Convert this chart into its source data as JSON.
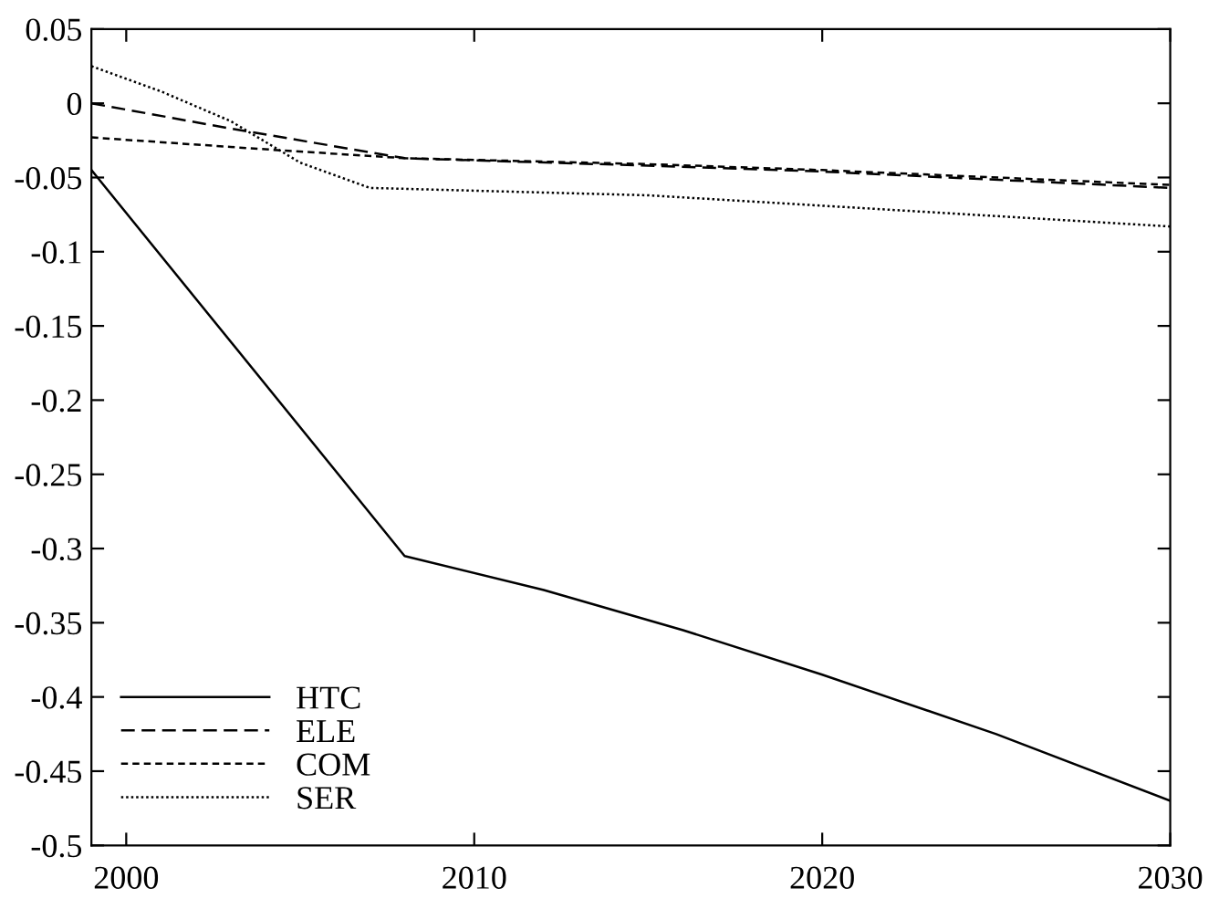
{
  "chart_data": {
    "type": "line",
    "xlim": [
      1999,
      2030
    ],
    "xticks": [
      2000,
      2010,
      2020,
      2030
    ],
    "ylim": [
      -0.5,
      0.05
    ],
    "yticks": [
      {
        "value": -0.5,
        "label": "-0.5"
      },
      {
        "value": -0.45,
        "label": "-0.45"
      },
      {
        "value": -0.4,
        "label": "-0.4"
      },
      {
        "value": -0.35,
        "label": "-0.35"
      },
      {
        "value": -0.3,
        "label": "-0.3"
      },
      {
        "value": -0.25,
        "label": "-0.25"
      },
      {
        "value": -0.2,
        "label": "-0.2"
      },
      {
        "value": -0.15,
        "label": "-0.15"
      },
      {
        "value": -0.1,
        "label": "-0.1"
      },
      {
        "value": -0.05,
        "label": "-0.05"
      },
      {
        "value": 0,
        "label": "0"
      },
      {
        "value": 0.05,
        "label": "0.05"
      }
    ],
    "grid": false,
    "legend": "bottom left",
    "series": [
      {
        "name": "HTC",
        "color": "#000000",
        "line_style": "solid",
        "x": [
          1999,
          2008,
          2012,
          2016,
          2020,
          2025,
          2030
        ],
        "values": [
          -0.045,
          -0.305,
          -0.328,
          -0.355,
          -0.385,
          -0.425,
          -0.47
        ]
      },
      {
        "name": "ELE",
        "color": "#000000",
        "line_style": "dashed",
        "x": [
          1999,
          2003,
          2008,
          2015,
          2020,
          2030
        ],
        "values": [
          0.0,
          -0.017,
          -0.037,
          -0.042,
          -0.046,
          -0.057
        ]
      },
      {
        "name": "COM",
        "color": "#000000",
        "line_style": "dashdense",
        "x": [
          1999,
          2004,
          2008,
          2015,
          2020,
          2030
        ],
        "values": [
          -0.023,
          -0.031,
          -0.037,
          -0.041,
          -0.045,
          -0.055
        ]
      },
      {
        "name": "SER",
        "color": "#000000",
        "line_style": "dotted",
        "x": [
          1999,
          2001,
          2003,
          2005,
          2007,
          2015,
          2020,
          2030
        ],
        "values": [
          0.025,
          0.008,
          -0.012,
          -0.04,
          -0.057,
          -0.062,
          -0.069,
          -0.083
        ]
      }
    ]
  }
}
